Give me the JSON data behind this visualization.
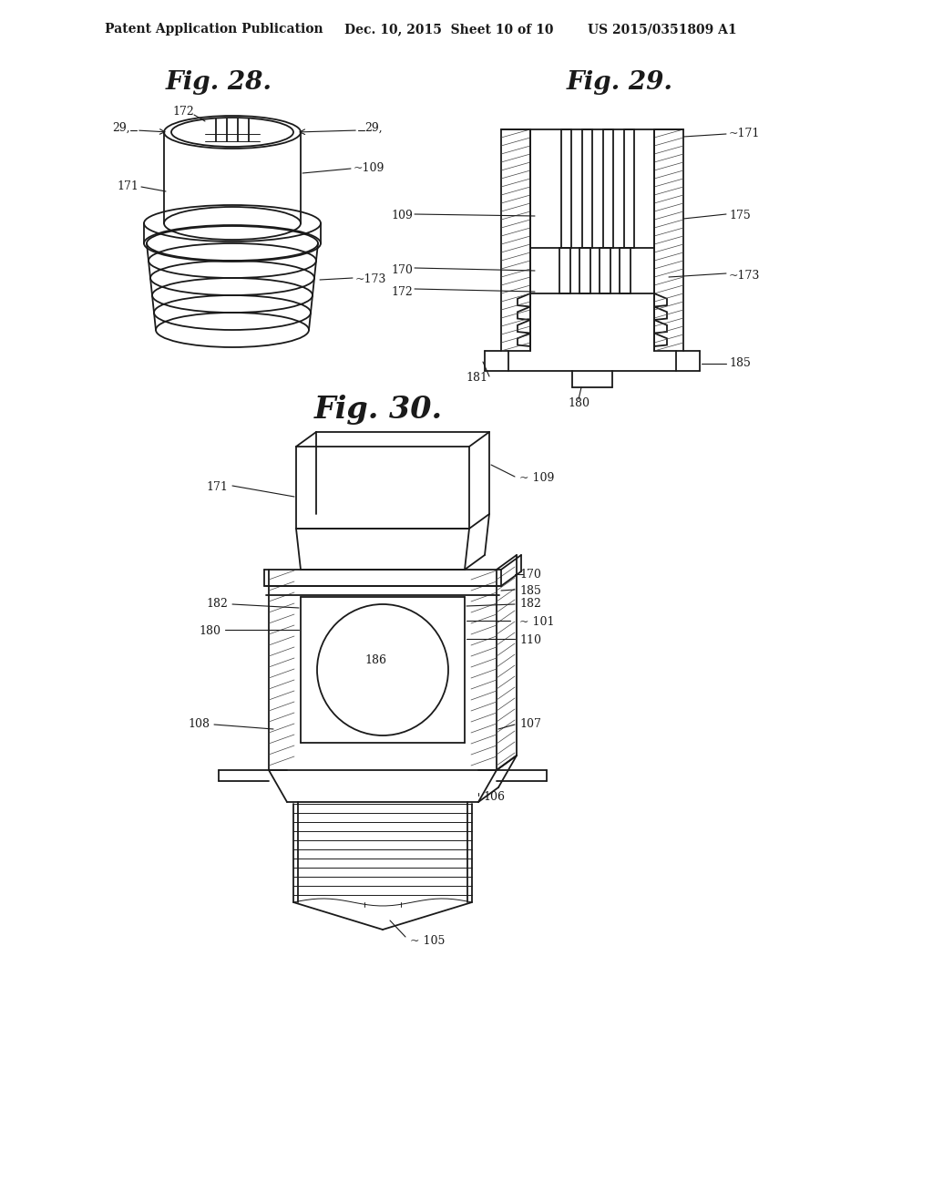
{
  "bg": "#ffffff",
  "lc": "#1a1a1a",
  "hc": "#444444",
  "header_left": "Patent Application Publication",
  "header_mid": "Dec. 10, 2015  Sheet 10 of 10",
  "header_right": "US 2015/0351809 A1",
  "fig28": "Fig. 28.",
  "fig29": "Fig. 29.",
  "fig30": "Fig. 30.",
  "fig_title_size": 20,
  "header_size": 10,
  "label_size": 9
}
